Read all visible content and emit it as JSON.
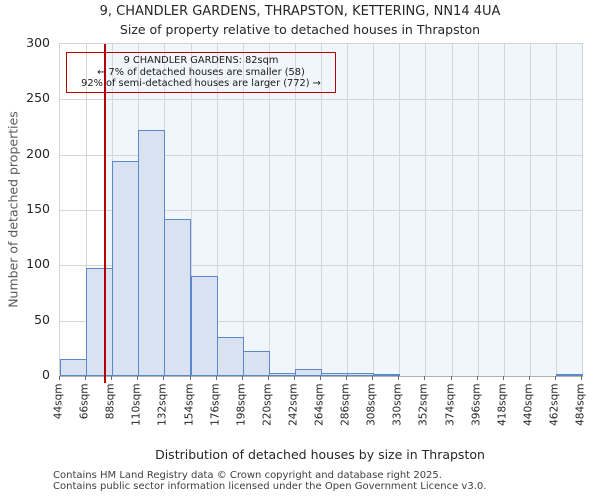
{
  "title": "9, CHANDLER GARDENS, THRAPSTON, KETTERING, NN14 4UA",
  "subtitle": "Size of property relative to detached houses in Thrapston",
  "annotation": {
    "line1": "9 CHANDLER GARDENS: 82sqm",
    "line2": "← 7% of detached houses are smaller (58)",
    "line3": "92% of semi-detached houses are larger (772) →"
  },
  "marker": {
    "value_sqm": 82,
    "color": "#b40000"
  },
  "chart_data": {
    "type": "bar",
    "title": "9, CHANDLER GARDENS, THRAPSTON, KETTERING, NN14 4UA",
    "subtitle": "Size of property relative to detached houses in Thrapston",
    "xlabel": "Distribution of detached houses by size in Thrapston",
    "ylabel": "Number of detached properties",
    "bin_width_sqm": 22,
    "bin_edges_sqm": [
      44,
      66,
      88,
      110,
      132,
      154,
      176,
      198,
      220,
      242,
      264,
      286,
      308,
      330,
      352,
      374,
      396,
      418,
      440,
      462,
      484
    ],
    "categories": [
      "44sqm",
      "66sqm",
      "88sqm",
      "110sqm",
      "132sqm",
      "154sqm",
      "176sqm",
      "198sqm",
      "220sqm",
      "242sqm",
      "264sqm",
      "286sqm",
      "308sqm",
      "330sqm",
      "352sqm",
      "374sqm",
      "396sqm",
      "418sqm",
      "440sqm",
      "462sqm",
      "484sqm"
    ],
    "values": [
      15,
      98,
      194,
      222,
      142,
      90,
      35,
      23,
      3,
      6,
      3,
      3,
      1,
      0,
      0,
      0,
      0,
      0,
      0,
      2
    ],
    "ylim": [
      0,
      300
    ],
    "yticks": [
      0,
      50,
      100,
      150,
      200,
      250,
      300
    ],
    "grid": true,
    "legend": "none",
    "bar_fill": "#d8e2f3",
    "bar_stroke": "#5b88c8",
    "highlight_bg": "#f1f5fc",
    "gridline_color": "#d6d6d6",
    "marker_line_sqm": 82,
    "marker_color": "#b40000"
  },
  "footer": {
    "line1": "Contains HM Land Registry data © Crown copyright and database right 2025.",
    "line2": "Contains public sector information licensed under the Open Government Licence v3.0."
  }
}
